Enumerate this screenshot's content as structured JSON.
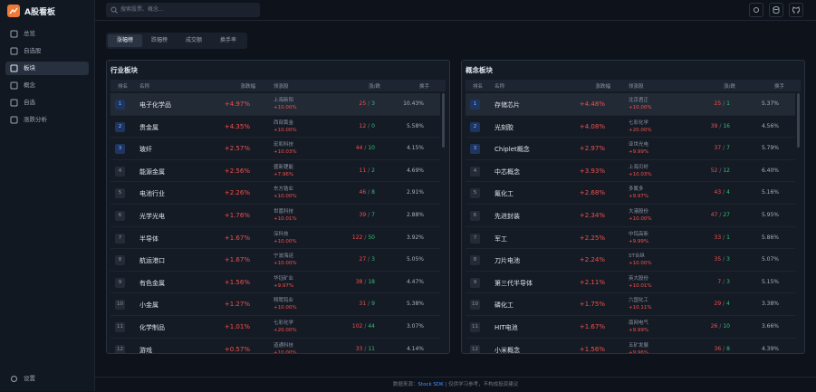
{
  "app": {
    "title": "A股看板"
  },
  "nav": [
    "总览",
    "自选股",
    "板块",
    "概念",
    "自选",
    "涨跌分析"
  ],
  "settings": "设置",
  "search_placeholder": "搜索股票、概念...",
  "tabs": [
    "涨幅榜",
    "跌幅榜",
    "成交额",
    "换手率"
  ],
  "panels": [
    {
      "title": "行业板块",
      "columns": [
        "排名",
        "名称",
        "涨跌幅",
        "领涨股",
        "涨/跌",
        "换手"
      ],
      "rows": [
        {
          "rank": 1,
          "name": "电子化学品",
          "change": "+4.97%",
          "leader": "上海新阳",
          "leader_change": "+10.00%",
          "up": 25,
          "down": 3,
          "turnover": "10.43%"
        },
        {
          "rank": 2,
          "name": "贵金属",
          "change": "+4.35%",
          "leader": "西部黄金",
          "leader_change": "+10.00%",
          "up": 12,
          "down": 0,
          "turnover": "5.58%"
        },
        {
          "rank": 3,
          "name": "玻纤",
          "change": "+2.57%",
          "leader": "宏和科技",
          "leader_change": "+10.03%",
          "up": 44,
          "down": 10,
          "turnover": "4.15%"
        },
        {
          "rank": 4,
          "name": "能源金属",
          "change": "+2.56%",
          "leader": "盛新锂能",
          "leader_change": "+7.96%",
          "up": 11,
          "down": 2,
          "turnover": "4.69%"
        },
        {
          "rank": 5,
          "name": "电池行业",
          "change": "+2.26%",
          "leader": "东方锆业",
          "leader_change": "+10.00%",
          "up": 46,
          "down": 8,
          "turnover": "2.91%"
        },
        {
          "rank": 6,
          "name": "光学光电",
          "change": "+1.76%",
          "leader": "世嘉科技",
          "leader_change": "+10.01%",
          "up": 39,
          "down": 7,
          "turnover": "2.88%"
        },
        {
          "rank": 7,
          "name": "半导体",
          "change": "+1.67%",
          "leader": "深科技",
          "leader_change": "+10.00%",
          "up": 122,
          "down": 50,
          "turnover": "3.92%"
        },
        {
          "rank": 8,
          "name": "航运港口",
          "change": "+1.67%",
          "leader": "宁波海运",
          "leader_change": "+10.00%",
          "up": 27,
          "down": 3,
          "turnover": "5.05%"
        },
        {
          "rank": 9,
          "name": "有色金属",
          "change": "+1.56%",
          "leader": "华钰矿业",
          "leader_change": "+9.97%",
          "up": 38,
          "down": 18,
          "turnover": "4.47%"
        },
        {
          "rank": 10,
          "name": "小金属",
          "change": "+1.27%",
          "leader": "翔鹭钨业",
          "leader_change": "+10.00%",
          "up": 31,
          "down": 9,
          "turnover": "5.38%"
        },
        {
          "rank": 11,
          "name": "化学制品",
          "change": "+1.01%",
          "leader": "七彩化学",
          "leader_change": "+20.00%",
          "up": 102,
          "down": 44,
          "turnover": "3.07%"
        },
        {
          "rank": 12,
          "name": "游戏",
          "change": "+0.57%",
          "leader": "道通科技",
          "leader_change": "+10.00%",
          "up": 33,
          "down": 11,
          "turnover": "4.14%"
        }
      ]
    },
    {
      "title": "概念板块",
      "columns": [
        "排名",
        "名称",
        "涨跌幅",
        "领涨股",
        "涨/跌",
        "换手"
      ],
      "rows": [
        {
          "rank": 1,
          "name": "存储芯片",
          "change": "+4.48%",
          "leader": "北京君正",
          "leader_change": "+10.00%",
          "up": 25,
          "down": 1,
          "turnover": "5.37%"
        },
        {
          "rank": 2,
          "name": "光刻胶",
          "change": "+4.08%",
          "leader": "七彩化学",
          "leader_change": "+20.00%",
          "up": 39,
          "down": 16,
          "turnover": "4.56%"
        },
        {
          "rank": 3,
          "name": "Chiplet概念",
          "change": "+2.97%",
          "leader": "亚世光电",
          "leader_change": "+9.99%",
          "up": 37,
          "down": 7,
          "turnover": "5.79%"
        },
        {
          "rank": 4,
          "name": "中芯概念",
          "change": "+3.93%",
          "leader": "上海贝岭",
          "leader_change": "+10.03%",
          "up": 52,
          "down": 12,
          "turnover": "6.40%"
        },
        {
          "rank": 5,
          "name": "氟化工",
          "change": "+2.68%",
          "leader": "多氟多",
          "leader_change": "+9.97%",
          "up": 43,
          "down": 4,
          "turnover": "5.16%"
        },
        {
          "rank": 6,
          "name": "先进封装",
          "change": "+2.34%",
          "leader": "大港股份",
          "leader_change": "+10.00%",
          "up": 47,
          "down": 27,
          "turnover": "5.95%"
        },
        {
          "rank": 7,
          "name": "军工",
          "change": "+2.25%",
          "leader": "中钨高新",
          "leader_change": "+9.99%",
          "up": 33,
          "down": 1,
          "turnover": "5.86%"
        },
        {
          "rank": 8,
          "name": "刀片电池",
          "change": "+2.24%",
          "leader": "ST合纵",
          "leader_change": "+10.00%",
          "up": 35,
          "down": 3,
          "turnover": "5.07%"
        },
        {
          "rank": 9,
          "name": "第三代半导体",
          "change": "+2.11%",
          "leader": "英大股份",
          "leader_change": "+10.01%",
          "up": 7,
          "down": 3,
          "turnover": "5.15%"
        },
        {
          "rank": 10,
          "name": "磷化工",
          "change": "+1.75%",
          "leader": "六国化工",
          "leader_change": "+10.11%",
          "up": 29,
          "down": 4,
          "turnover": "3.38%"
        },
        {
          "rank": 11,
          "name": "HIT电池",
          "change": "+1.67%",
          "leader": "南网电气",
          "leader_change": "+9.99%",
          "up": 26,
          "down": 10,
          "turnover": "3.66%"
        },
        {
          "rank": 12,
          "name": "小米概念",
          "change": "+1.56%",
          "leader": "五矿发展",
          "leader_change": "+9.96%",
          "up": 36,
          "down": 8,
          "turnover": "4.39%"
        }
      ]
    }
  ],
  "footer": {
    "source_label": "数据来源：",
    "source": "Stock SDK",
    "disclaimer": "| 仅供学习参考，不构成投资建议"
  }
}
